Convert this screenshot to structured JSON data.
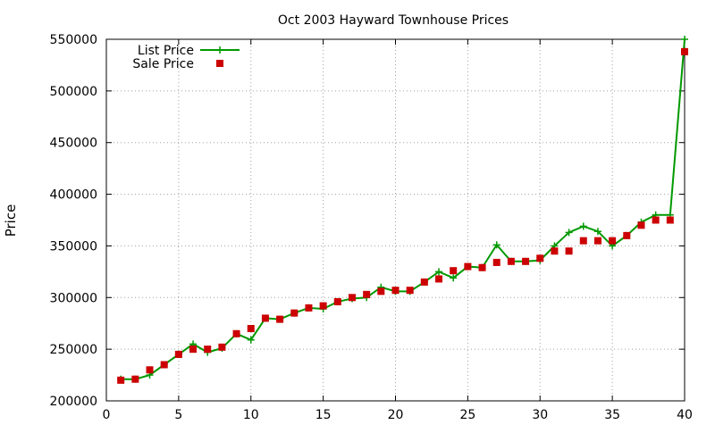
{
  "chart_data": {
    "type": "line",
    "title": "Oct 2003 Hayward Townhouse Prices",
    "xlabel": "",
    "ylabel": "Price",
    "xlim": [
      0,
      40
    ],
    "ylim": [
      200000,
      550000
    ],
    "xticks": [
      0,
      5,
      10,
      15,
      20,
      25,
      30,
      35,
      40
    ],
    "yticks": [
      200000,
      250000,
      300000,
      350000,
      400000,
      450000,
      500000,
      550000
    ],
    "xtick_labels": [
      "0",
      "5",
      "10",
      "15",
      "20",
      "25",
      "30",
      "35",
      "40"
    ],
    "ytick_labels": [
      "200000",
      "250000",
      "300000",
      "350000",
      "400000",
      "450000",
      "500000",
      "550000"
    ],
    "grid": true,
    "legend_position": "top-left",
    "series": [
      {
        "name": "List Price",
        "style": "line-with-plus-markers",
        "color": "#009900",
        "x": [
          1,
          2,
          3,
          4,
          5,
          6,
          7,
          8,
          9,
          10,
          11,
          12,
          13,
          14,
          15,
          16,
          17,
          18,
          19,
          20,
          21,
          22,
          23,
          24,
          25,
          26,
          27,
          28,
          29,
          30,
          31,
          32,
          33,
          34,
          35,
          36,
          37,
          38,
          39,
          40
        ],
        "y": [
          221000,
          221000,
          225000,
          235000,
          245000,
          255000,
          247000,
          251000,
          265000,
          259000,
          280000,
          279000,
          285000,
          290000,
          289000,
          296000,
          299000,
          300000,
          310000,
          306000,
          306000,
          315000,
          325000,
          319000,
          330000,
          329000,
          351000,
          335000,
          335000,
          336000,
          350000,
          363000,
          369000,
          364000,
          350000,
          360000,
          373000,
          380000,
          380000,
          550000
        ]
      },
      {
        "name": "Sale Price",
        "style": "square-markers",
        "color": "#cc0000",
        "x": [
          1,
          2,
          3,
          4,
          5,
          6,
          7,
          8,
          9,
          10,
          11,
          12,
          13,
          14,
          15,
          16,
          17,
          18,
          19,
          20,
          21,
          22,
          23,
          24,
          25,
          26,
          27,
          28,
          29,
          30,
          31,
          32,
          33,
          34,
          35,
          36,
          37,
          38,
          39,
          40
        ],
        "y": [
          220000,
          221000,
          230000,
          235000,
          245000,
          250000,
          250000,
          252000,
          265000,
          270000,
          280000,
          279000,
          285000,
          290000,
          292000,
          296000,
          300000,
          303000,
          306000,
          307000,
          307000,
          315000,
          318000,
          326000,
          330000,
          329000,
          334000,
          335000,
          335000,
          338000,
          345000,
          345000,
          355000,
          355000,
          355000,
          360000,
          370000,
          375000,
          375000,
          538000
        ]
      }
    ]
  }
}
